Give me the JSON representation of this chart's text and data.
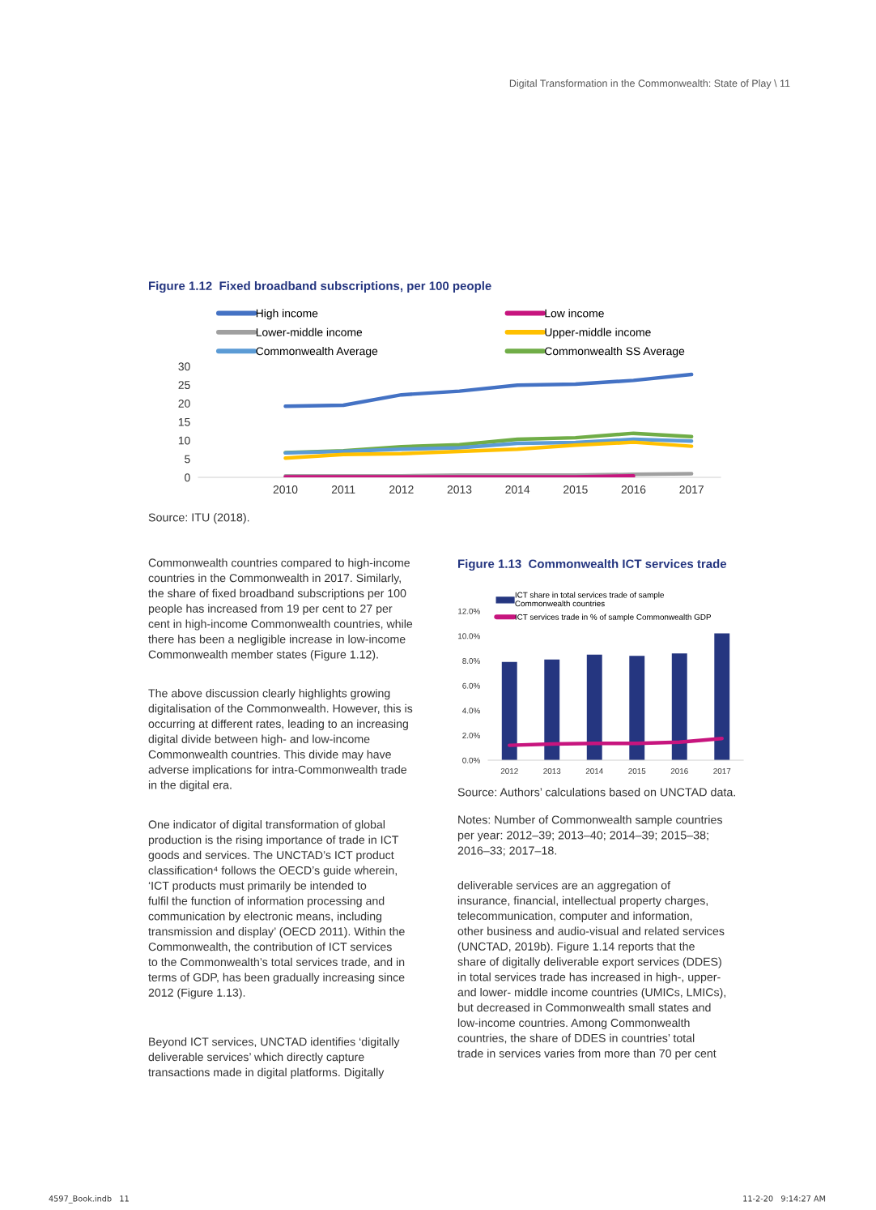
{
  "chart_data": [
    {
      "type": "line",
      "title": "Figure 1.12  Fixed broadband subscriptions, per 100 people",
      "categories": [
        null,
        "2010",
        "2011",
        "2012",
        "2013",
        "2014",
        "2015",
        "2016",
        "2017"
      ],
      "series": [
        {
          "name": "High income",
          "color": "#4472c4",
          "values": [
            null,
            19.2,
            19.5,
            22.3,
            23.3,
            24.9,
            25.2,
            26.2,
            27.8
          ]
        },
        {
          "name": "Low income",
          "color": "#c7157e",
          "values": [
            null,
            0.1,
            0.1,
            0.1,
            0.1,
            0.1,
            0.1,
            0.4,
            null
          ]
        },
        {
          "name": "Lower-middle income",
          "color": "#a0a0a0",
          "values": [
            null,
            0.4,
            0.4,
            0.4,
            0.6,
            0.6,
            0.6,
            0.8,
            1.0
          ]
        },
        {
          "name": "Upper-middle income",
          "color": "#ffc000",
          "values": [
            null,
            5.2,
            6.2,
            6.4,
            7.0,
            7.6,
            8.7,
            9.5,
            8.4
          ]
        },
        {
          "name": "Commonwealth Average",
          "color": "#5b9bd5",
          "values": [
            null,
            6.6,
            7.0,
            7.6,
            8.0,
            9.2,
            9.4,
            10.3,
            9.8
          ]
        },
        {
          "name": "Commonwealth SS Average",
          "color": "#70ad47",
          "values": [
            null,
            6.7,
            7.2,
            8.3,
            8.8,
            10.3,
            10.7,
            11.9,
            11.0
          ]
        }
      ],
      "ylim": [
        0,
        30
      ],
      "yticks": [
        0,
        5,
        10,
        15,
        20,
        25,
        30
      ],
      "legend": "top",
      "annotations": [
        "Source: ITU (2018)."
      ]
    },
    {
      "type": "bar",
      "title": "Figure 1.13  Commonwealth ICT services trade",
      "categories": [
        "2012",
        "2013",
        "2014",
        "2015",
        "2016",
        "2017"
      ],
      "series": [
        {
          "name": "ICT share in total services trade of sample\nCommonwealth countries",
          "color": "#253680",
          "values": [
            7.9,
            8.1,
            8.5,
            8.4,
            8.6,
            10.2
          ]
        },
        {
          "name": "ICT services trade in % of sample Commonwealth GDP",
          "type": "line",
          "color": "#c7157e",
          "values": [
            1.2,
            1.3,
            1.35,
            1.35,
            1.45,
            1.75
          ]
        }
      ],
      "ylim": [
        0,
        12
      ],
      "yticks": [
        {
          "value": 0,
          "label": "0.0%"
        },
        {
          "value": 2,
          "label": "2.0%"
        },
        {
          "value": 4,
          "label": "4.0%"
        },
        {
          "value": 6,
          "label": "6.0%"
        },
        {
          "value": 8,
          "label": "8.0%"
        },
        {
          "value": 10,
          "label": "10.0%"
        },
        {
          "value": 12,
          "label": "12.0%"
        }
      ],
      "legend": "top",
      "annotations": [
        "Source: Authors’ calculations based on UNCTAD data.",
        "Notes: Number of Commonwealth sample countries\nper year: 2012–39; 2013–40; 2014–39; 2015–38;\n2016–33; 2017–18."
      ]
    },
    {
      "type": "other",
      "annotations": [
        "Digital Transformation in the Commonwealth: State of Play \\ 11",
        "Commonwealth countries compared to high-income\ncountries in the Commonwealth in 2017. Similarly,\nthe share of fixed broadband subscriptions per 100\npeople has increased from 19 per cent to 27 per\ncent in high-income Commonwealth countries, while\nthere has been a negligible increase in low-income\nCommonwealth member states (Figure 1.12).",
        "The above discussion clearly highlights growing\ndigitalisation of the Commonwealth. However, this is\noccurring at different rates, leading to an increasing\ndigital divide between high- and low-income\nCommonwealth countries. This divide may have\nadverse implications for intra-Commonwealth trade\nin the digital era.",
        "One indicator of digital transformation of global\nproduction is the rising importance of trade in ICT\ngoods and services. The UNCTAD’s ICT product\nclassification⁴ follows the OECD’s guide wherein,\n‘ICT products must primarily be intended to\nfulfil the function of information processing and\ncommunication by electronic means, including\ntransmission and display’ (OECD 2011). Within the\nCommonwealth, the contribution of ICT services\nto the Commonwealth’s total services trade, and in\nterms of GDP, has been gradually increasing since\n2012 (Figure 1.13).",
        "Beyond ICT services, UNCTAD identifies ‘digitally\ndeliverable services’ which directly capture\ntransactions made in digital platforms. Digitally",
        "deliverable services are an aggregation of\ninsurance, financial, intellectual property charges,\ntelecommunication, computer and information,\nother business and audio-visual and related services\n(UNCTAD, 2019b). Figure 1.14 reports that the\nshare of digitally deliverable export services (DDES)\nin total services trade has increased in high-, upper-\nand lower- middle income countries (UMICs, LMICs),\nbut decreased in Commonwealth small states and\nlow-income countries. Among Commonwealth\ncountries, the share of DDES in countries’ total\ntrade in services varies from more than 70 per cent",
        "4597_Book.indb   11",
        "11-2-20   9:14:27 AM"
      ]
    }
  ]
}
